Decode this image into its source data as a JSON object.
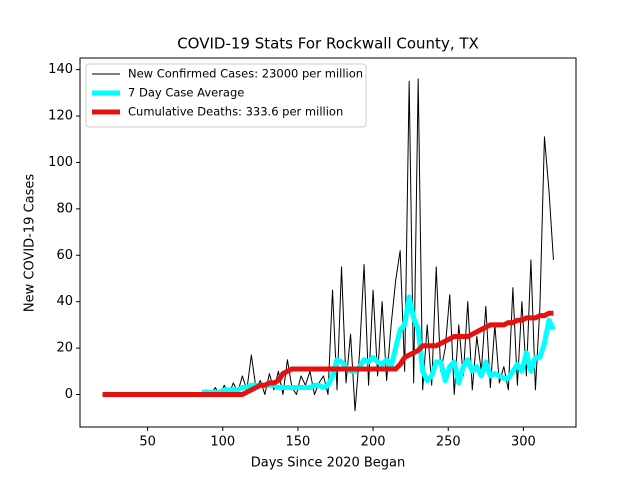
{
  "chart_data": {
    "type": "line",
    "title": "COVID-19 Stats For Rockwall County, TX",
    "x_label": "Days Since 2020 Began",
    "y_label": "New COVID-19 Cases",
    "x": [
      20,
      23,
      26,
      29,
      32,
      35,
      38,
      41,
      44,
      47,
      50,
      53,
      56,
      59,
      62,
      65,
      68,
      71,
      74,
      77,
      80,
      83,
      86,
      89,
      92,
      95,
      98,
      101,
      104,
      107,
      110,
      113,
      116,
      119,
      122,
      125,
      128,
      131,
      134,
      137,
      140,
      143,
      146,
      149,
      152,
      155,
      158,
      161,
      164,
      167,
      170,
      173,
      176,
      179,
      182,
      185,
      188,
      191,
      194,
      197,
      200,
      203,
      206,
      209,
      212,
      215,
      218,
      221,
      224,
      227,
      230,
      233,
      236,
      239,
      242,
      245,
      248,
      251,
      254,
      257,
      260,
      263,
      266,
      269,
      272,
      275,
      278,
      281,
      284,
      287,
      290,
      293,
      296,
      299,
      302,
      305,
      308,
      311,
      314,
      317,
      320
    ],
    "series": [
      {
        "name": "New Confirmed Cases: 23000 per million",
        "color": "#000000",
        "width": 1,
        "values": [
          null,
          null,
          null,
          null,
          null,
          null,
          null,
          null,
          null,
          null,
          null,
          null,
          null,
          null,
          null,
          null,
          null,
          null,
          null,
          null,
          null,
          null,
          0,
          2,
          0,
          3,
          0,
          4,
          0,
          5,
          1,
          8,
          2,
          17,
          3,
          6,
          0,
          9,
          2,
          10,
          0,
          15,
          3,
          0,
          8,
          4,
          10,
          0,
          5,
          8,
          0,
          45,
          2,
          55,
          5,
          26,
          -7,
          18,
          56,
          4,
          45,
          8,
          40,
          6,
          30,
          49,
          62,
          10,
          135,
          5,
          136,
          2,
          30,
          4,
          55,
          10,
          20,
          43,
          0,
          30,
          8,
          40,
          2,
          25,
          10,
          38,
          3,
          30,
          5,
          12,
          2,
          46,
          4,
          40,
          8,
          58,
          2,
          38,
          111,
          88,
          58
        ]
      },
      {
        "name": "7 Day Case Average",
        "color": "#00ffff",
        "width": 5,
        "values": [
          null,
          null,
          null,
          null,
          null,
          null,
          null,
          null,
          null,
          null,
          null,
          null,
          null,
          null,
          null,
          null,
          null,
          null,
          null,
          null,
          null,
          null,
          1,
          1,
          1,
          1,
          1,
          2,
          2,
          2,
          2,
          3,
          3,
          4,
          4,
          4,
          4,
          4,
          4,
          3,
          3,
          3,
          3,
          3,
          3,
          3,
          3,
          4,
          4,
          3,
          4,
          8,
          15,
          14,
          12,
          10,
          10,
          12,
          15,
          14,
          16,
          14,
          13,
          15,
          12,
          20,
          28,
          30,
          42,
          33,
          28,
          10,
          6,
          8,
          14,
          14,
          6,
          12,
          14,
          5,
          12,
          15,
          10,
          12,
          8,
          14,
          8,
          9,
          8,
          7,
          7,
          10,
          13,
          10,
          18,
          10,
          16,
          16,
          22,
          32,
          28
        ]
      },
      {
        "name": "Cumulative Deaths: 333.6 per million",
        "color": "#e8100f",
        "width": 5,
        "values": [
          0,
          0,
          0,
          0,
          0,
          0,
          0,
          0,
          0,
          0,
          0,
          0,
          0,
          0,
          0,
          0,
          0,
          0,
          0,
          0,
          0,
          0,
          0,
          0,
          0,
          0,
          0,
          0,
          0,
          0,
          0,
          0,
          1,
          2,
          3,
          4,
          4,
          5,
          5,
          6,
          9,
          10,
          11,
          11,
          11,
          11,
          11,
          11,
          11,
          11,
          11,
          11,
          11,
          11,
          11,
          11,
          11,
          11,
          11,
          11,
          11,
          11,
          11,
          11,
          11,
          11,
          13,
          16,
          17,
          18,
          19,
          21,
          21,
          21,
          21,
          22,
          23,
          24,
          25,
          25,
          25,
          25,
          26,
          27,
          28,
          29,
          30,
          30,
          30,
          30,
          31,
          31,
          32,
          32,
          33,
          33,
          33,
          34,
          34,
          35,
          35
        ]
      }
    ],
    "xlim": [
      5,
      335
    ],
    "xticks": [
      50,
      100,
      150,
      200,
      250,
      300
    ],
    "ylim": [
      -14,
      145
    ],
    "yticks": [
      0,
      20,
      40,
      60,
      80,
      100,
      120,
      140
    ],
    "legend": "upper left"
  }
}
